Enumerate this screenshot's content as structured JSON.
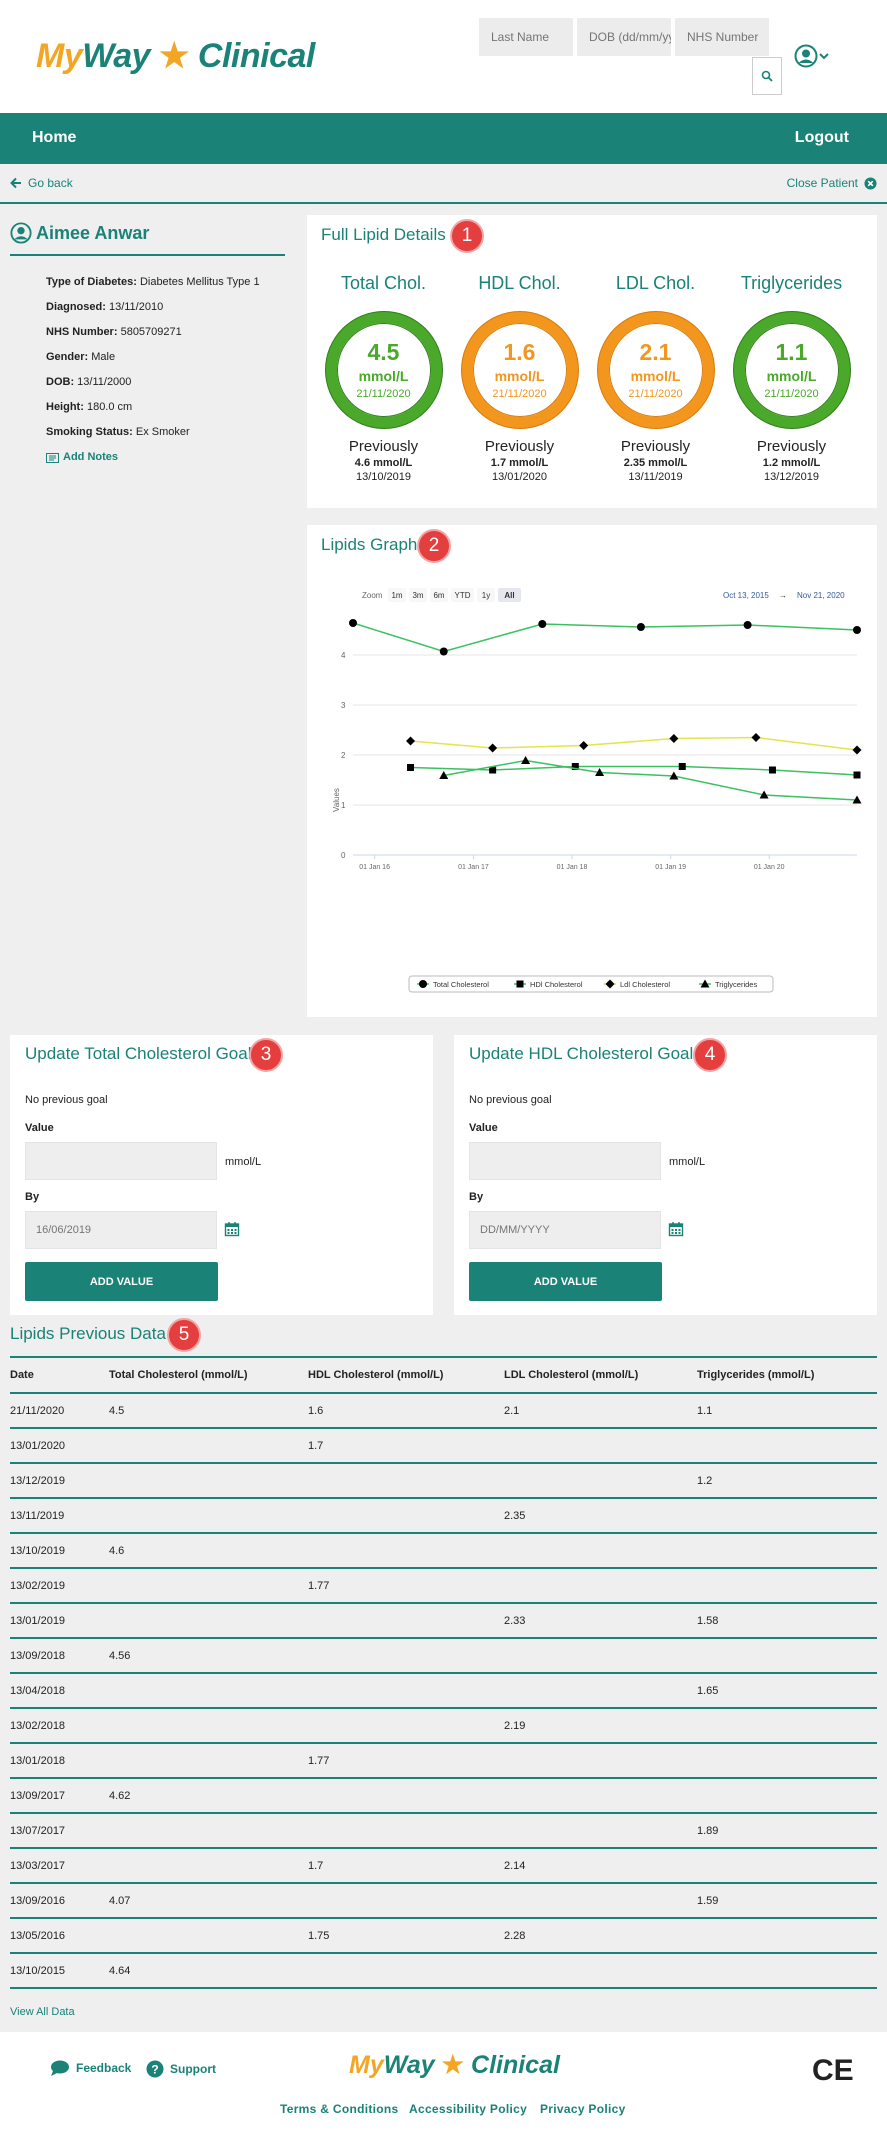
{
  "header": {
    "logo": {
      "my": "My",
      "way": "Way",
      "star": "★",
      "clinical": "Clinical"
    },
    "search": {
      "last_name_placeholder": "Last Name",
      "dob_placeholder": "DOB (dd/mm/yyyy)",
      "nhs_placeholder": "NHS Number"
    }
  },
  "nav": {
    "home": "Home",
    "logout": "Logout"
  },
  "subbar": {
    "go_back": "Go back",
    "close_patient": "Close Patient"
  },
  "patient": {
    "name": "Aimee Anwar",
    "details": [
      {
        "label": "Type of Diabetes:",
        "value": "Diabetes Mellitus Type 1"
      },
      {
        "label": "Diagnosed:",
        "value": "13/11/2010"
      },
      {
        "label": "NHS Number:",
        "value": "5805709271"
      },
      {
        "label": "Gender:",
        "value": "Male"
      },
      {
        "label": "DOB:",
        "value": "13/11/2000"
      },
      {
        "label": "Height:",
        "value": "180.0 cm"
      },
      {
        "label": "Smoking Status:",
        "value": "Ex Smoker"
      }
    ],
    "add_notes": "Add Notes"
  },
  "lipid_details": {
    "title": "Full Lipid Details",
    "badge": "1",
    "items": [
      {
        "name": "Total Chol.",
        "value": "4.5",
        "unit": "mmol/L",
        "date": "21/11/2020",
        "prev_label": "Previously",
        "prev_value": "4.6 mmol/L",
        "prev_date": "13/10/2019",
        "color": "#4aa82a"
      },
      {
        "name": "HDL Chol.",
        "value": "1.6",
        "unit": "mmol/L",
        "date": "21/11/2020",
        "prev_label": "Previously",
        "prev_value": "1.7 mmol/L",
        "prev_date": "13/01/2020",
        "color": "#f2961e"
      },
      {
        "name": "LDL Chol.",
        "value": "2.1",
        "unit": "mmol/L",
        "date": "21/11/2020",
        "prev_label": "Previously",
        "prev_value": "2.35 mmol/L",
        "prev_date": "13/11/2019",
        "color": "#f2961e"
      },
      {
        "name": "Triglycerides",
        "value": "1.1",
        "unit": "mmol/L",
        "date": "21/11/2020",
        "prev_label": "Previously",
        "prev_value": "1.2 mmol/L",
        "prev_date": "13/12/2019",
        "color": "#4aa82a"
      }
    ]
  },
  "lipids_graph": {
    "title": "Lipids Graph",
    "badge": "2",
    "zoom_label": "Zoom",
    "zoom_options": [
      "1m",
      "3m",
      "6m",
      "YTD",
      "1y",
      "All"
    ],
    "zoom_selected": "All",
    "range_from": "Oct 13, 2015",
    "range_sep": "→",
    "range_to": "Nov 21, 2020"
  },
  "chart_data": {
    "type": "line",
    "ylabel": "Values",
    "ylim": [
      0,
      5
    ],
    "y_ticks": [
      "0",
      "1",
      "2",
      "3",
      "4"
    ],
    "x_ticks": [
      "01 Jan 16",
      "01 Jan 17",
      "01 Jan 18",
      "01 Jan 19",
      "01 Jan 20"
    ],
    "xlim": [
      "2015-10-13",
      "2020-11-21"
    ],
    "legend_position": "bottom",
    "series": [
      {
        "name": "Total Cholesterol",
        "marker": "circle",
        "color": "#3cc060",
        "points": [
          [
            "2015-10-13",
            4.64
          ],
          [
            "2016-09-13",
            4.07
          ],
          [
            "2017-09-13",
            4.62
          ],
          [
            "2018-09-13",
            4.56
          ],
          [
            "2019-10-13",
            4.6
          ],
          [
            "2020-11-21",
            4.5
          ]
        ]
      },
      {
        "name": "HDl Cholesterol",
        "marker": "square",
        "color": "#3cc060",
        "points": [
          [
            "2016-05-13",
            1.75
          ],
          [
            "2017-03-13",
            1.7
          ],
          [
            "2018-01-13",
            1.77
          ],
          [
            "2019-02-13",
            1.77
          ],
          [
            "2020-01-13",
            1.7
          ],
          [
            "2020-11-21",
            1.6
          ]
        ]
      },
      {
        "name": "Ldl Cholesterol",
        "marker": "diamond",
        "color": "#e4e44a",
        "points": [
          [
            "2016-05-13",
            2.28
          ],
          [
            "2017-03-13",
            2.14
          ],
          [
            "2018-02-13",
            2.19
          ],
          [
            "2019-01-13",
            2.33
          ],
          [
            "2019-11-13",
            2.35
          ],
          [
            "2020-11-21",
            2.1
          ]
        ]
      },
      {
        "name": "Triglycerides",
        "marker": "triangle",
        "color": "#3cc060",
        "points": [
          [
            "2016-09-13",
            1.59
          ],
          [
            "2017-07-13",
            1.89
          ],
          [
            "2018-04-13",
            1.65
          ],
          [
            "2019-01-13",
            1.58
          ],
          [
            "2019-12-13",
            1.2
          ],
          [
            "2020-11-21",
            1.1
          ]
        ]
      }
    ]
  },
  "goal_total": {
    "title": "Update Total Cholesterol Goal",
    "badge": "3",
    "no_previous": "No previous goal",
    "value_label": "Value",
    "unit": "mmol/L",
    "by_label": "By",
    "by_placeholder": "16/06/2019",
    "button": "ADD VALUE"
  },
  "goal_hdl": {
    "title": "Update HDL Cholesterol Goal",
    "badge": "4",
    "no_previous": "No previous goal",
    "value_label": "Value",
    "unit": "mmol/L",
    "by_label": "By",
    "by_placeholder": "DD/MM/YYYY",
    "button": "ADD VALUE"
  },
  "previous_data": {
    "title": "Lipids Previous Data",
    "badge": "5",
    "columns": [
      "Date",
      "Total Cholesterol (mmol/L)",
      "HDL Cholesterol (mmol/L)",
      "LDL Cholesterol (mmol/L)",
      "Triglycerides (mmol/L)"
    ],
    "rows": [
      [
        "21/11/2020",
        "4.5",
        "1.6",
        "2.1",
        "1.1"
      ],
      [
        "13/01/2020",
        "",
        "1.7",
        "",
        ""
      ],
      [
        "13/12/2019",
        "",
        "",
        "",
        "1.2"
      ],
      [
        "13/11/2019",
        "",
        "",
        "2.35",
        ""
      ],
      [
        "13/10/2019",
        "4.6",
        "",
        "",
        ""
      ],
      [
        "13/02/2019",
        "",
        "1.77",
        "",
        ""
      ],
      [
        "13/01/2019",
        "",
        "",
        "2.33",
        "1.58"
      ],
      [
        "13/09/2018",
        "4.56",
        "",
        "",
        ""
      ],
      [
        "13/04/2018",
        "",
        "",
        "",
        "1.65"
      ],
      [
        "13/02/2018",
        "",
        "",
        "2.19",
        ""
      ],
      [
        "13/01/2018",
        "",
        "1.77",
        "",
        ""
      ],
      [
        "13/09/2017",
        "4.62",
        "",
        "",
        ""
      ],
      [
        "13/07/2017",
        "",
        "",
        "",
        "1.89"
      ],
      [
        "13/03/2017",
        "",
        "1.7",
        "2.14",
        ""
      ],
      [
        "13/09/2016",
        "4.07",
        "",
        "",
        "1.59"
      ],
      [
        "13/05/2016",
        "",
        "1.75",
        "2.28",
        ""
      ],
      [
        "13/10/2015",
        "4.64",
        "",
        "",
        ""
      ]
    ],
    "view_all": "View All Data"
  },
  "footer": {
    "feedback": "Feedback",
    "support": "Support",
    "logo": {
      "my": "My",
      "way": "Way",
      "star": "★",
      "clinical": "Clinical"
    },
    "ce": "CE",
    "links": [
      "Terms & Conditions",
      "Accessibility Policy",
      "Privacy Policy"
    ]
  }
}
